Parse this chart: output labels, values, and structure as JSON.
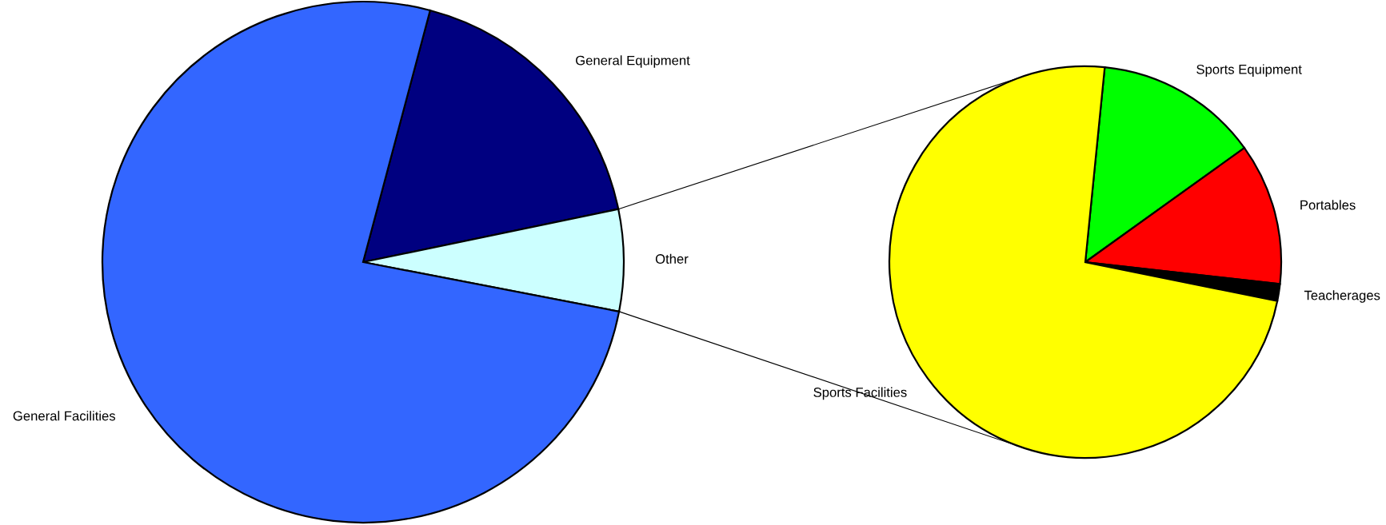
{
  "chart_data": [
    {
      "type": "pie",
      "categories": [
        "General Equipment",
        "Other",
        "General Facilities"
      ],
      "values": [
        17.6,
        6.3,
        76.1
      ],
      "colors": [
        "#000080",
        "#ccffff",
        "#3366ff"
      ]
    },
    {
      "type": "pie",
      "categories": [
        "Sports Equipment",
        "Portables",
        "Teacherages",
        "Sports Facilities"
      ],
      "values": [
        13.5,
        11.7,
        1.4,
        73.4
      ],
      "colors": [
        "#00ff00",
        "#ff0000",
        "#000000",
        "#ffff00"
      ]
    }
  ]
}
